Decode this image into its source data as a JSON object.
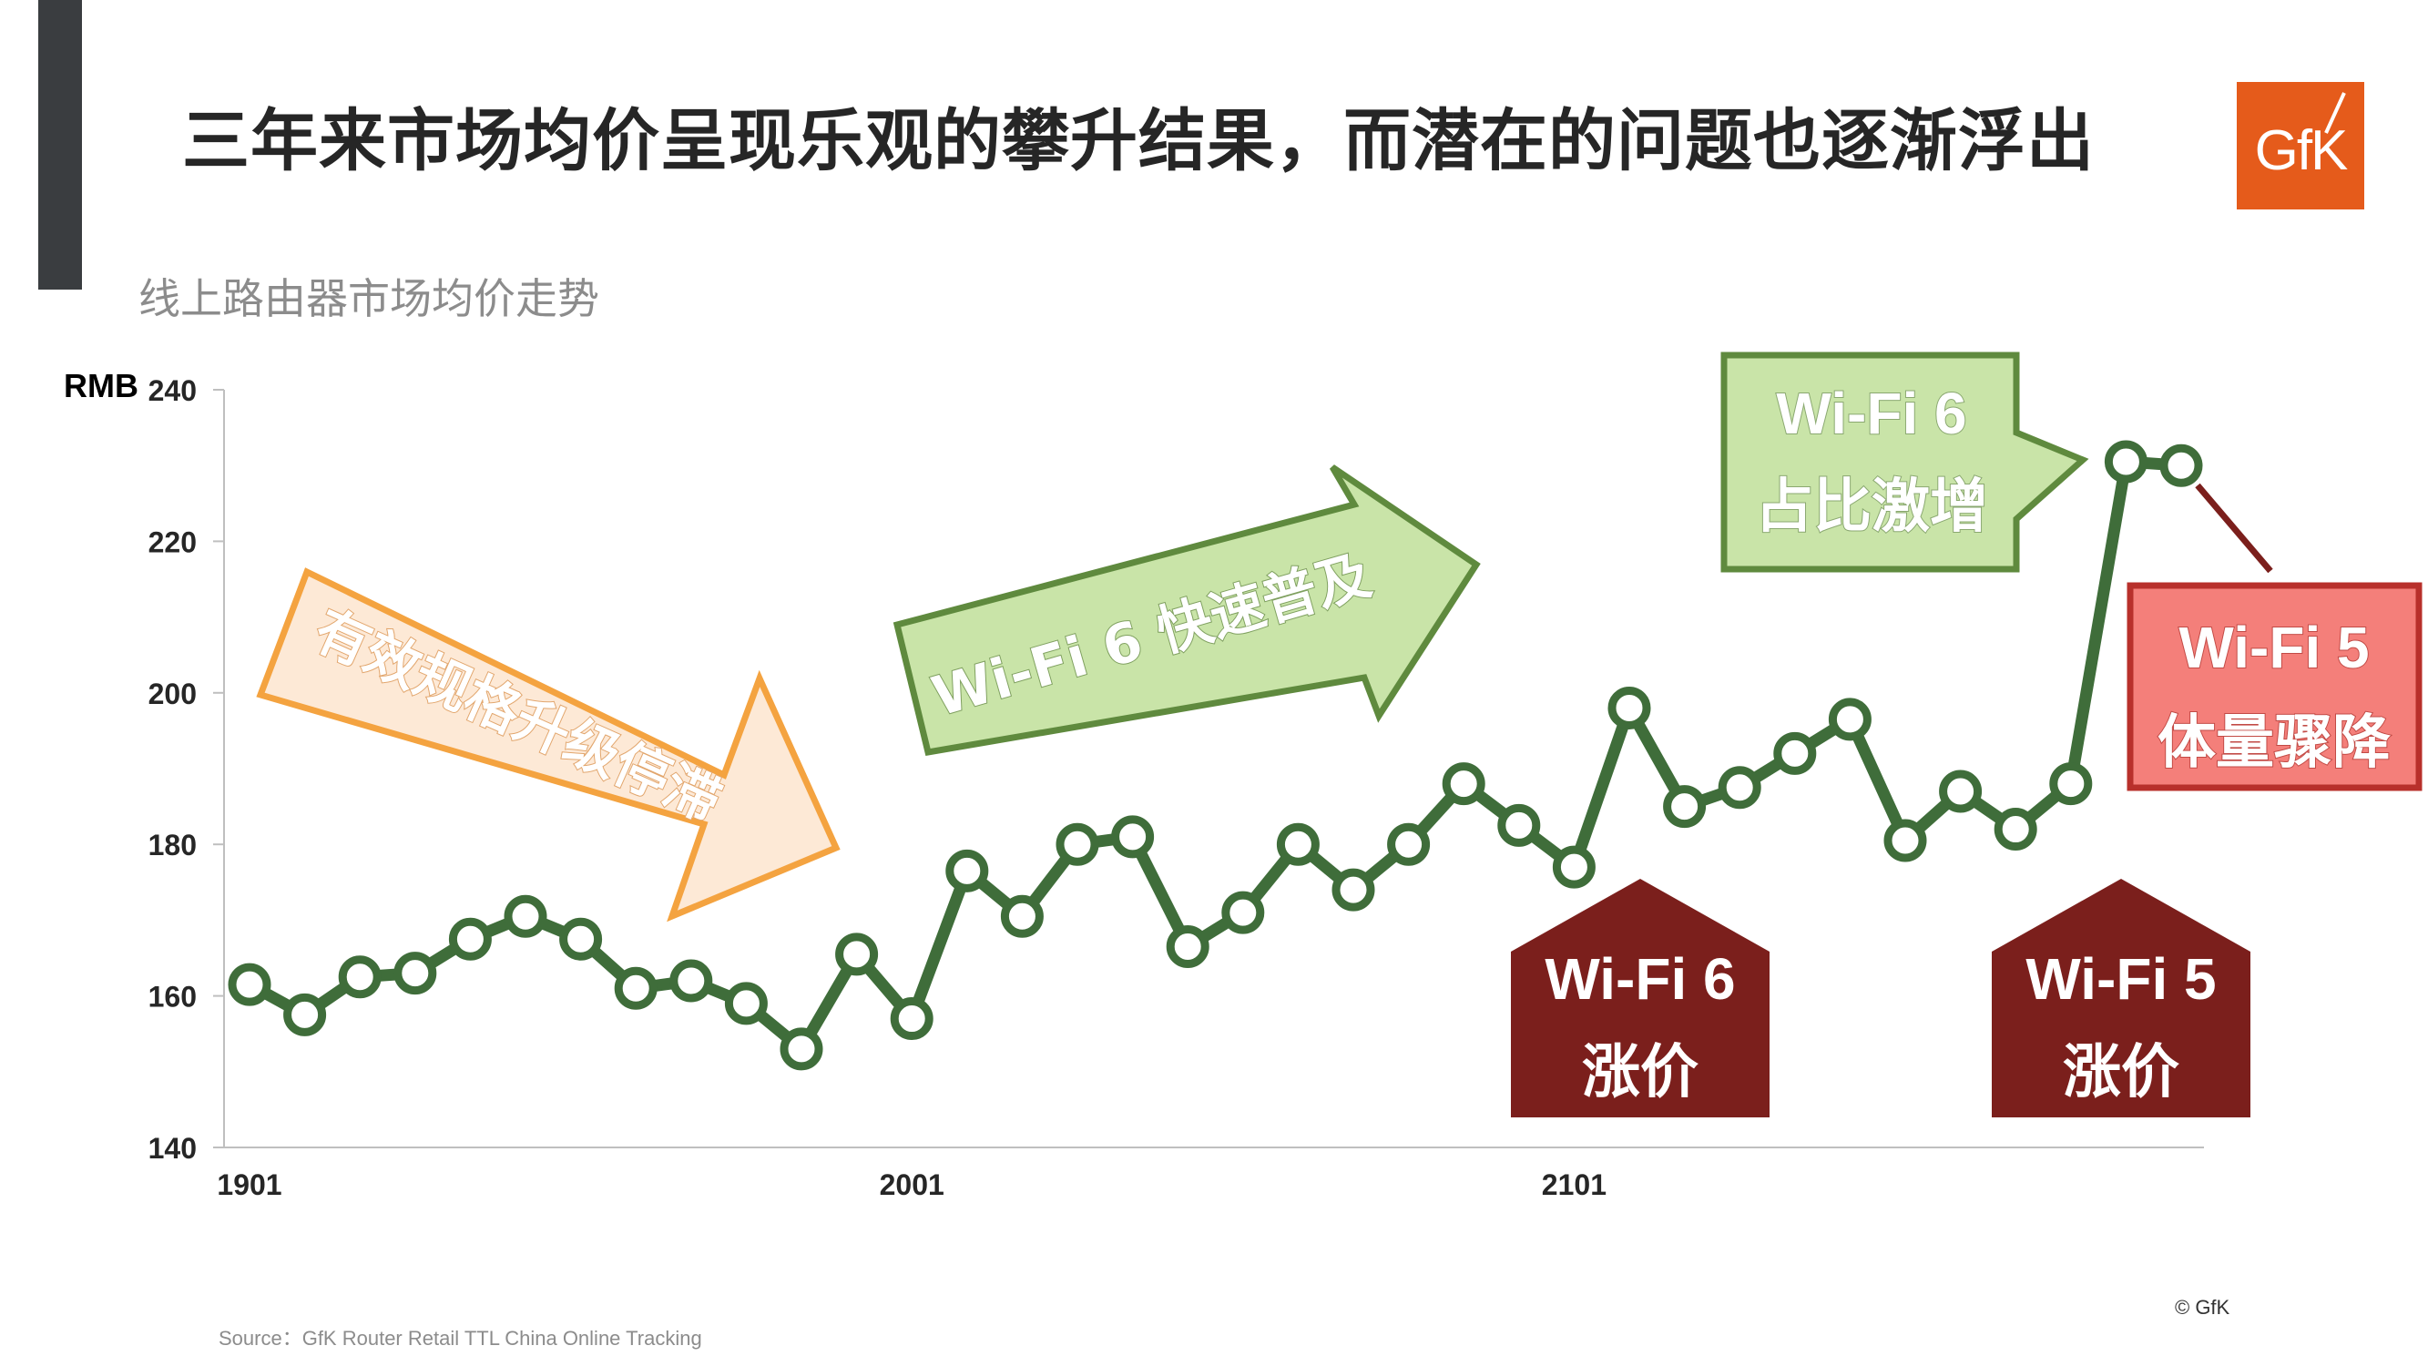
{
  "title": "三年来市场均价呈现乐观的攀升结果，而潜在的问题也逐渐浮出",
  "subtitle": "线上路由器市场均价走势",
  "logo_text": "GfK",
  "source": "Source：GfK Router Retail TTL China Online Tracking",
  "copyright": "© GfK",
  "colors": {
    "line": "#3f6d3a",
    "orange_arrow": "#f4a340",
    "green_arrow": "#5f8a3e",
    "pink_box": "#f47f7a",
    "dark_red": "#7b1f1c",
    "logo": "#e55b1b"
  },
  "annotations": {
    "stagnation": "有效规格升级停滞",
    "wifi6_spread": "Wi-Fi 6 快速普及",
    "wifi6_surge_line1": "Wi-Fi 6",
    "wifi6_surge_line2": "占比激增",
    "wifi5_drop_line1": "Wi-Fi 5",
    "wifi5_drop_line2": "体量骤降",
    "wifi6_rise_line1": "Wi-Fi 6",
    "wifi6_rise_line2": "涨价",
    "wifi5_rise_line1": "Wi-Fi 5",
    "wifi5_rise_line2": "涨价"
  },
  "chart_data": {
    "type": "line",
    "ylabel": "RMB",
    "ylim": [
      140,
      240
    ],
    "yticks": [
      140,
      160,
      180,
      200,
      220,
      240
    ],
    "xtick_labels": [
      "1901",
      "2001",
      "2101"
    ],
    "xtick_index": [
      0,
      12,
      24
    ],
    "grid": false,
    "series": [
      {
        "values": [
          161.5,
          157.5,
          162.5,
          163,
          167.5,
          170.5,
          167.5,
          161,
          162,
          159,
          153,
          165.5,
          157,
          176.5,
          170.5,
          180,
          181,
          166.5,
          171,
          180,
          174,
          180,
          188,
          182.5,
          177,
          198,
          185,
          187.5,
          192,
          196.5,
          180.5,
          187,
          182,
          188,
          230.5,
          230
        ]
      }
    ]
  }
}
